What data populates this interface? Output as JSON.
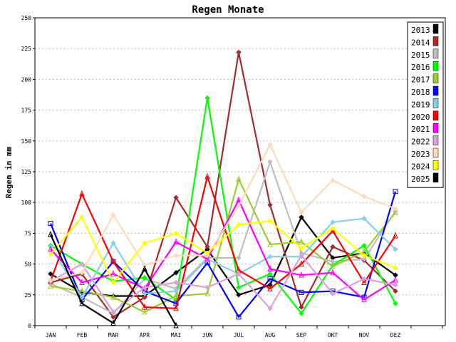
{
  "chart_data": {
    "type": "line",
    "title": "Regen Monate",
    "ylabel": "Regen in mm",
    "xlabel": "",
    "ylim": [
      0,
      250
    ],
    "yticks": [
      0,
      25,
      50,
      75,
      100,
      125,
      150,
      175,
      200,
      225,
      250
    ],
    "grid": true,
    "legend": "right",
    "categories": [
      "JAN",
      "FEB",
      "MAR",
      "APR",
      "MAI",
      "JUN",
      "JUL",
      "AUG",
      "SEP",
      "OKT",
      "NOV",
      "DEZ"
    ],
    "series": [
      {
        "name": "2013",
        "color": "#000000",
        "marker": "diamond",
        "values": [
          42,
          27,
          24,
          24,
          43,
          62,
          25,
          33,
          88,
          55,
          59,
          41
        ]
      },
      {
        "name": "2014",
        "color": "#a52a2a",
        "marker": "diamond",
        "values": [
          35,
          42,
          7,
          23,
          104,
          64,
          222,
          98,
          15,
          64,
          53,
          28
        ]
      },
      {
        "name": "2015",
        "color": "#bebebe",
        "marker": "diamond",
        "values": [
          34,
          23,
          10,
          38,
          30,
          55,
          55,
          133,
          59,
          52,
          54,
          93
        ]
      },
      {
        "name": "2016",
        "color": "#00ff00",
        "marker": "diamond",
        "values": [
          65,
          50,
          36,
          39,
          21,
          185,
          31,
          42,
          10,
          49,
          65,
          18
        ]
      },
      {
        "name": "2017",
        "color": "#9acd32",
        "marker": "triangle",
        "values": [
          32,
          28,
          23,
          11,
          24,
          26,
          119,
          66,
          68,
          48,
          60,
          92
        ]
      },
      {
        "name": "2018",
        "color": "#0000ff",
        "marker": "square",
        "values": [
          83,
          21,
          52,
          28,
          18,
          51,
          7,
          38,
          27,
          28,
          23,
          109
        ]
      },
      {
        "name": "2019",
        "color": "#87ceeb",
        "marker": "diamond",
        "values": [
          64,
          23,
          67,
          26,
          28,
          54,
          42,
          56,
          56,
          84,
          87,
          62
        ]
      },
      {
        "name": "2020",
        "color": "#ff0000",
        "marker": "triangle",
        "values": [
          36,
          107,
          52,
          15,
          14,
          121,
          45,
          30,
          50,
          77,
          35,
          73
        ]
      },
      {
        "name": "2021",
        "color": "#ff00ff",
        "marker": "triangle",
        "values": [
          62,
          35,
          42,
          30,
          68,
          54,
          102,
          46,
          41,
          43,
          21,
          37
        ]
      },
      {
        "name": "2022",
        "color": "#dda0dd",
        "marker": "diamond",
        "values": [
          36,
          50,
          11,
          31,
          35,
          31,
          42,
          14,
          57,
          26,
          38,
          33
        ]
      },
      {
        "name": "2023",
        "color": "#ffdab9",
        "marker": "diamond",
        "values": [
          37,
          43,
          90,
          49,
          57,
          57,
          97,
          147,
          92,
          118,
          105,
          95
        ]
      },
      {
        "name": "2024",
        "color": "#ffff00",
        "marker": "diamond",
        "values": [
          58,
          88,
          35,
          67,
          75,
          59,
          82,
          85,
          63,
          79,
          57,
          47
        ]
      },
      {
        "name": "2025",
        "color": "#000000",
        "marker": "triangle",
        "values": [
          74,
          18,
          2,
          46,
          0,
          null,
          null,
          null,
          null,
          null,
          null,
          null
        ]
      }
    ]
  }
}
